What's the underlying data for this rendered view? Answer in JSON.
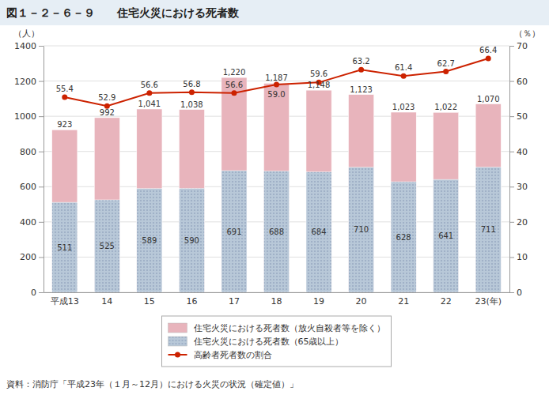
{
  "chart_data": {
    "type": "bar",
    "title": "図１－２－６－９　　住宅火災における死者数",
    "categories": [
      "平成13",
      "14",
      "15",
      "16",
      "17",
      "18",
      "19",
      "20",
      "21",
      "22",
      "23(年)"
    ],
    "series": [
      {
        "name": "住宅火災における死者数（放火自殺者等を除く）",
        "color": "#e8b4bc",
        "values": [
          923,
          992,
          1041,
          1038,
          1220,
          1187,
          1148,
          1123,
          1023,
          1022,
          1070
        ],
        "value_labels": [
          "923",
          "992",
          "1,041",
          "1,038",
          "1,220",
          "1,187",
          "1,148",
          "1,123",
          "1,023",
          "1,022",
          "1,070"
        ]
      },
      {
        "name": "住宅火災における死者数（65歳以上）",
        "color": "#b8c8d8",
        "values": [
          511,
          525,
          589,
          590,
          691,
          688,
          684,
          710,
          628,
          641,
          711
        ]
      },
      {
        "name": "高齢者死者数の割合",
        "type": "line",
        "axis": "y2",
        "color": "#cc2200",
        "marker": "circle",
        "line_style": "solid",
        "values": [
          55.4,
          52.9,
          56.6,
          56.8,
          56.6,
          59.0,
          59.6,
          63.2,
          61.4,
          62.7,
          66.4
        ],
        "value_labels": [
          "55.4",
          "52.9",
          "56.6",
          "56.8",
          "56.6",
          "59.0",
          "59.6",
          "63.2",
          "61.4",
          "62.7",
          "66.4"
        ]
      }
    ],
    "stacked": false,
    "ylim": [
      0,
      1400
    ],
    "yticks": [
      0,
      200,
      400,
      600,
      800,
      1000,
      1200,
      1400
    ],
    "y2lim": [
      0,
      70
    ],
    "y2ticks": [
      0,
      10,
      20,
      30,
      40,
      50,
      60,
      70
    ],
    "ylabel": "（人）",
    "y2label": "（％）",
    "grid": true,
    "data_labels": true,
    "legend": "bottom",
    "footnote": "資料：消防庁「平成23年（１月～12月）における火災の状況（確定値）」"
  }
}
